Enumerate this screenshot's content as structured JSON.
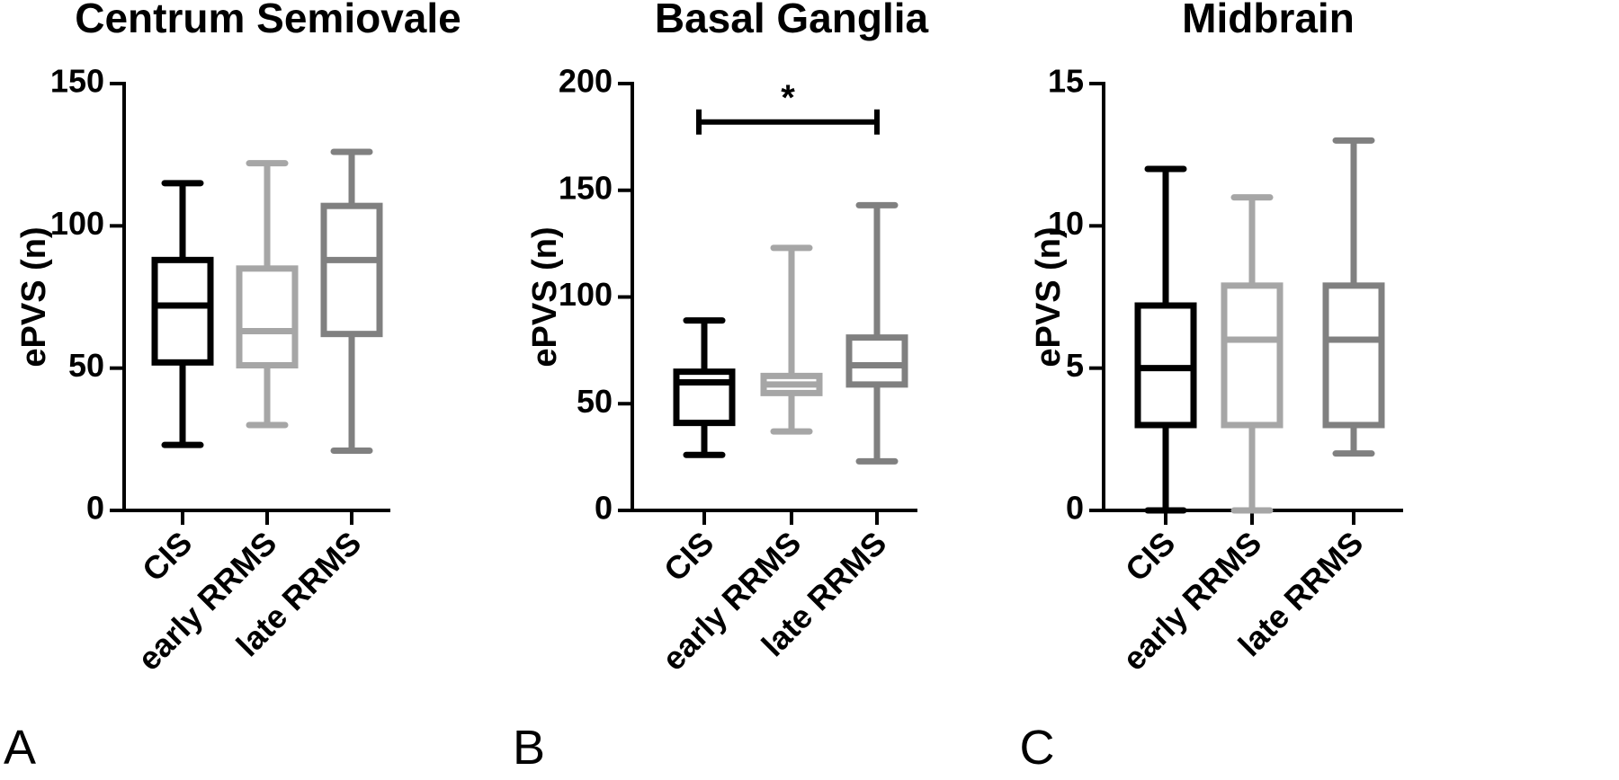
{
  "chart_data": [
    {
      "type": "box",
      "panel_label": "A",
      "title": "Centrum Semiovale",
      "ylabel": "ePVS (n)",
      "ylim": [
        0,
        150
      ],
      "yticks": [
        0,
        50,
        100,
        150
      ],
      "categories": [
        "CIS",
        "early RRMS",
        "late RRMS"
      ],
      "colors": [
        "#000000",
        "#a6a6a6",
        "#808080"
      ],
      "boxes": [
        {
          "min": 23,
          "q1": 52,
          "median": 72,
          "q3": 88,
          "max": 115
        },
        {
          "min": 30,
          "q1": 51,
          "median": 63,
          "q3": 85,
          "max": 122
        },
        {
          "min": 21,
          "q1": 62,
          "median": 88,
          "q3": 107,
          "max": 126
        }
      ]
    },
    {
      "type": "box",
      "panel_label": "B",
      "title": "Basal Ganglia",
      "ylabel": "ePVS (n)",
      "ylim": [
        0,
        200
      ],
      "yticks": [
        0,
        50,
        100,
        150,
        200
      ],
      "categories": [
        "CIS",
        "early RRMS",
        "late RRMS"
      ],
      "colors": [
        "#000000",
        "#a6a6a6",
        "#808080"
      ],
      "boxes": [
        {
          "min": 26,
          "q1": 41,
          "median": 60,
          "q3": 65,
          "max": 89
        },
        {
          "min": 37,
          "q1": 55,
          "median": 59,
          "q3": 63,
          "max": 123
        },
        {
          "min": 23,
          "q1": 59,
          "median": 68,
          "q3": 81,
          "max": 143
        }
      ],
      "significance": {
        "from": "CIS",
        "to": "late RRMS",
        "label": "*",
        "y": 182
      }
    },
    {
      "type": "box",
      "panel_label": "C",
      "title": "Midbrain",
      "ylabel": "ePVS (n)",
      "ylim": [
        0,
        15
      ],
      "yticks": [
        0,
        5,
        10,
        15
      ],
      "categories": [
        "CIS",
        "early RRMS",
        "late RRMS"
      ],
      "colors": [
        "#000000",
        "#a6a6a6",
        "#808080"
      ],
      "boxes": [
        {
          "min": 0,
          "q1": 3,
          "median": 5,
          "q3": 7.2,
          "max": 12
        },
        {
          "min": 0,
          "q1": 3,
          "median": 6,
          "q3": 7.9,
          "max": 11
        },
        {
          "min": 2,
          "q1": 3,
          "median": 6,
          "q3": 7.9,
          "max": 13
        }
      ]
    }
  ]
}
